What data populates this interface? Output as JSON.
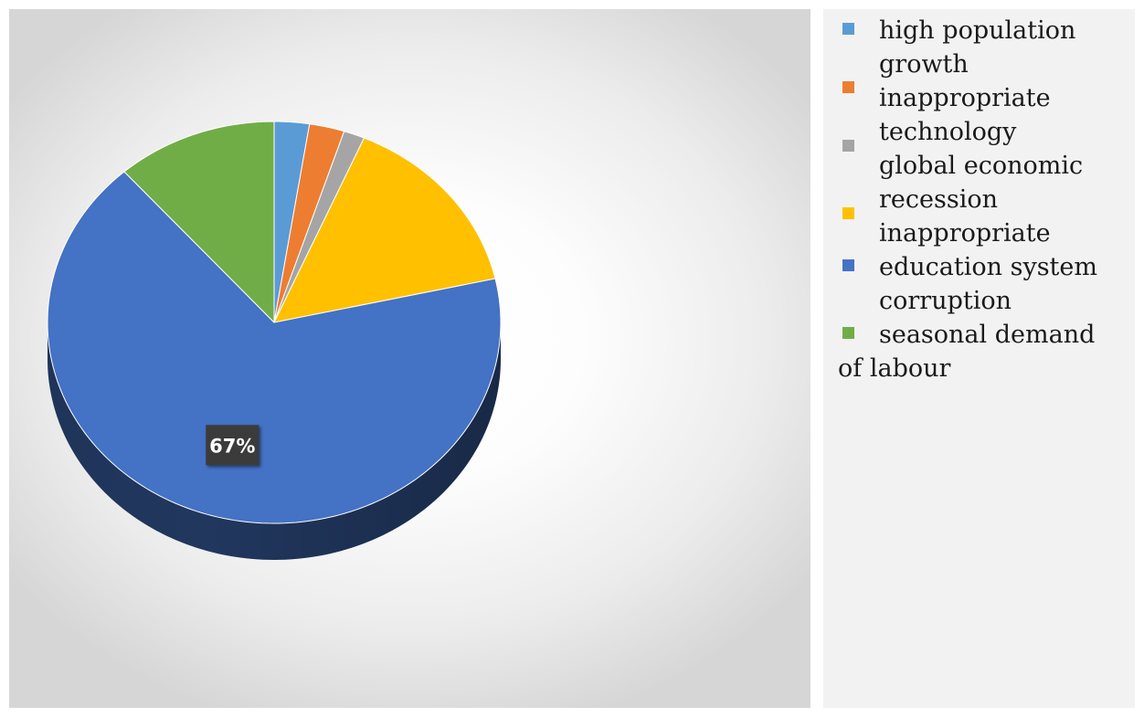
{
  "chart_data": {
    "type": "pie",
    "style": "3d",
    "title": "",
    "categories": [
      "high population growth",
      "inappropriate technology",
      "global economic recession",
      "inappropriate education system",
      "corruption",
      "seasonal demand of labour"
    ],
    "values": [
      2.5,
      2.5,
      1.5,
      15,
      67,
      11.5
    ],
    "colors": [
      "#5b9bd5",
      "#ed7d31",
      "#a5a5a5",
      "#ffc000",
      "#4472c4",
      "#70ad47"
    ],
    "data_labels": [
      {
        "category": "corruption",
        "text": "67%"
      }
    ],
    "legend": {
      "position": "right",
      "lines": [
        "high population",
        "growth",
        "inappropriate",
        "technology",
        "global economic",
        "recession",
        "inappropriate",
        "education system",
        "corruption",
        "seasonal demand",
        "of labour"
      ]
    }
  }
}
